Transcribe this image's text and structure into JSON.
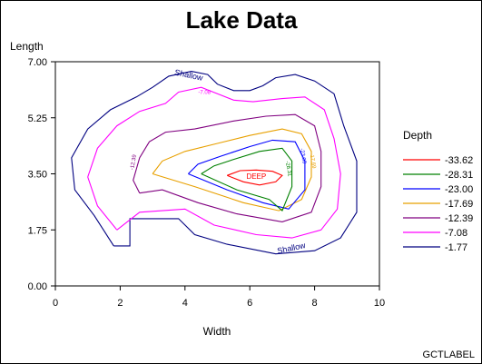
{
  "chart_data": {
    "type": "contour",
    "title": "Lake Data",
    "xlabel": "Width",
    "ylabel": "Length",
    "xlim": [
      0,
      10
    ],
    "ylim": [
      0,
      7
    ],
    "x_ticks": [
      0,
      2,
      4,
      6,
      8,
      10
    ],
    "x_tick_labels": [
      "0",
      "2",
      "4",
      "6",
      "8",
      "10"
    ],
    "y_ticks": [
      0,
      1.75,
      3.5,
      5.25,
      7
    ],
    "y_tick_labels": [
      "0.00",
      "1.75",
      "3.50",
      "5.25",
      "7.00"
    ],
    "grid": false,
    "legend": {
      "title": "Depth",
      "placement": "right",
      "entries": [
        {
          "label": "-33.62",
          "color": "#ff0000"
        },
        {
          "label": "-28.31",
          "color": "#008000"
        },
        {
          "label": "-23.00",
          "color": "#0000ff"
        },
        {
          "label": "-17.69",
          "color": "#e8a000"
        },
        {
          "label": "-12.39",
          "color": "#800080"
        },
        {
          "label": "-7.08",
          "color": "#ff00ff"
        },
        {
          "label": "-1.77",
          "color": "#000080"
        }
      ]
    },
    "series": [
      {
        "level": "-1.77",
        "color": "#000080",
        "points": [
          [
            1.8,
            1.25
          ],
          [
            2.3,
            1.25
          ],
          [
            2.3,
            2.1
          ],
          [
            3.8,
            2.1
          ],
          [
            4.3,
            1.6
          ],
          [
            5.3,
            1.3
          ],
          [
            6.8,
            1.0
          ],
          [
            8.0,
            1.1
          ],
          [
            8.8,
            1.5
          ],
          [
            9.3,
            2.3
          ],
          [
            9.3,
            3.9
          ],
          [
            8.9,
            5.0
          ],
          [
            8.6,
            6.0
          ],
          [
            8.0,
            6.4
          ],
          [
            7.4,
            6.6
          ],
          [
            6.8,
            6.5
          ],
          [
            6.4,
            6.25
          ],
          [
            6.0,
            6.1
          ],
          [
            5.5,
            6.1
          ],
          [
            5.0,
            6.3
          ],
          [
            4.7,
            6.6
          ],
          [
            4.2,
            6.7
          ],
          [
            3.5,
            6.55
          ],
          [
            3.0,
            6.2
          ],
          [
            2.5,
            5.9
          ],
          [
            1.7,
            5.5
          ],
          [
            1.0,
            4.9
          ],
          [
            0.5,
            4.0
          ],
          [
            0.6,
            3.0
          ],
          [
            1.2,
            2.2
          ],
          [
            1.8,
            1.25
          ]
        ]
      },
      {
        "level": "-7.08",
        "color": "#ff00ff",
        "points": [
          [
            1.9,
            1.75
          ],
          [
            2.6,
            2.3
          ],
          [
            4.0,
            2.4
          ],
          [
            4.9,
            1.9
          ],
          [
            6.2,
            1.6
          ],
          [
            7.3,
            1.5
          ],
          [
            8.2,
            1.75
          ],
          [
            8.7,
            2.4
          ],
          [
            8.8,
            3.5
          ],
          [
            8.6,
            4.6
          ],
          [
            8.3,
            5.5
          ],
          [
            7.7,
            5.9
          ],
          [
            7.0,
            5.85
          ],
          [
            6.1,
            5.75
          ],
          [
            5.5,
            5.8
          ],
          [
            5.0,
            6.0
          ],
          [
            4.5,
            6.2
          ],
          [
            3.8,
            6.05
          ],
          [
            3.4,
            5.7
          ],
          [
            2.6,
            5.45
          ],
          [
            1.9,
            5.0
          ],
          [
            1.3,
            4.3
          ],
          [
            1.0,
            3.4
          ],
          [
            1.3,
            2.5
          ],
          [
            1.9,
            1.75
          ]
        ]
      },
      {
        "level": "-12.39",
        "color": "#800080",
        "points": [
          [
            2.6,
            2.9
          ],
          [
            3.3,
            3.0
          ],
          [
            4.4,
            2.6
          ],
          [
            5.6,
            2.25
          ],
          [
            7.0,
            2.0
          ],
          [
            7.9,
            2.3
          ],
          [
            8.2,
            3.1
          ],
          [
            8.2,
            4.2
          ],
          [
            8.0,
            5.0
          ],
          [
            7.4,
            5.35
          ],
          [
            6.5,
            5.3
          ],
          [
            5.5,
            5.15
          ],
          [
            4.3,
            4.9
          ],
          [
            3.4,
            4.8
          ],
          [
            2.9,
            4.5
          ],
          [
            2.6,
            4.0
          ],
          [
            2.4,
            3.3
          ],
          [
            2.6,
            2.9
          ]
        ]
      },
      {
        "level": "-17.69",
        "color": "#e8a000",
        "points": [
          [
            3.0,
            3.5
          ],
          [
            4.3,
            3.1
          ],
          [
            5.8,
            2.6
          ],
          [
            6.9,
            2.35
          ],
          [
            7.6,
            2.7
          ],
          [
            7.9,
            3.4
          ],
          [
            7.9,
            4.2
          ],
          [
            7.6,
            4.75
          ],
          [
            7.0,
            4.9
          ],
          [
            6.0,
            4.7
          ],
          [
            5.0,
            4.45
          ],
          [
            4.0,
            4.2
          ],
          [
            3.3,
            3.9
          ],
          [
            3.0,
            3.5
          ]
        ]
      },
      {
        "level": "-23.00",
        "color": "#0000ff",
        "points": [
          [
            4.1,
            3.5
          ],
          [
            5.3,
            3.0
          ],
          [
            6.4,
            2.6
          ],
          [
            7.2,
            2.4
          ],
          [
            7.7,
            3.0
          ],
          [
            7.7,
            3.9
          ],
          [
            7.4,
            4.5
          ],
          [
            6.7,
            4.55
          ],
          [
            6.0,
            4.35
          ],
          [
            5.1,
            4.05
          ],
          [
            4.4,
            3.8
          ],
          [
            4.1,
            3.5
          ]
        ]
      },
      {
        "level": "-28.31",
        "color": "#008000",
        "points": [
          [
            4.5,
            3.5
          ],
          [
            5.6,
            3.0
          ],
          [
            6.6,
            2.7
          ],
          [
            7.0,
            2.35
          ],
          [
            7.3,
            3.1
          ],
          [
            7.3,
            3.9
          ],
          [
            7.0,
            4.3
          ],
          [
            6.3,
            4.2
          ],
          [
            5.5,
            3.95
          ],
          [
            4.9,
            3.75
          ],
          [
            4.5,
            3.5
          ]
        ]
      },
      {
        "level": "-33.62",
        "color": "#ff0000",
        "points": [
          [
            5.3,
            3.45
          ],
          [
            5.8,
            3.25
          ],
          [
            6.3,
            3.15
          ],
          [
            6.8,
            3.25
          ],
          [
            7.0,
            3.45
          ],
          [
            6.7,
            3.58
          ],
          [
            6.2,
            3.62
          ],
          [
            5.7,
            3.6
          ],
          [
            5.3,
            3.45
          ]
        ]
      }
    ],
    "annotations": [
      {
        "text": "Shallow",
        "x": 4.1,
        "y": 6.5,
        "color": "#000080",
        "angle": 12,
        "size": 9
      },
      {
        "text": "Shallow",
        "x": 7.3,
        "y": 1.1,
        "color": "#000080",
        "angle": -12,
        "size": 9
      },
      {
        "text": "DEEP",
        "x": 6.2,
        "y": 3.35,
        "color": "#ff0000",
        "angle": 0,
        "size": 8
      },
      {
        "text": "-7.08",
        "x": 4.6,
        "y": 6.0,
        "color": "#ff00ff",
        "angle": 0,
        "size": 6
      },
      {
        "text": "-12.39",
        "x": 2.45,
        "y": 3.85,
        "color": "#800080",
        "angle": -80,
        "size": 6
      },
      {
        "text": "-17.69",
        "x": 7.9,
        "y": 3.9,
        "color": "#e8a000",
        "angle": 80,
        "size": 6
      },
      {
        "text": "-23.00",
        "x": 7.6,
        "y": 4.05,
        "color": "#0000ff",
        "angle": 80,
        "size": 6
      },
      {
        "text": "-28.31",
        "x": 7.15,
        "y": 3.65,
        "color": "#008000",
        "angle": 80,
        "size": 6
      }
    ]
  },
  "footer": {
    "label": "GCTLABEL"
  }
}
